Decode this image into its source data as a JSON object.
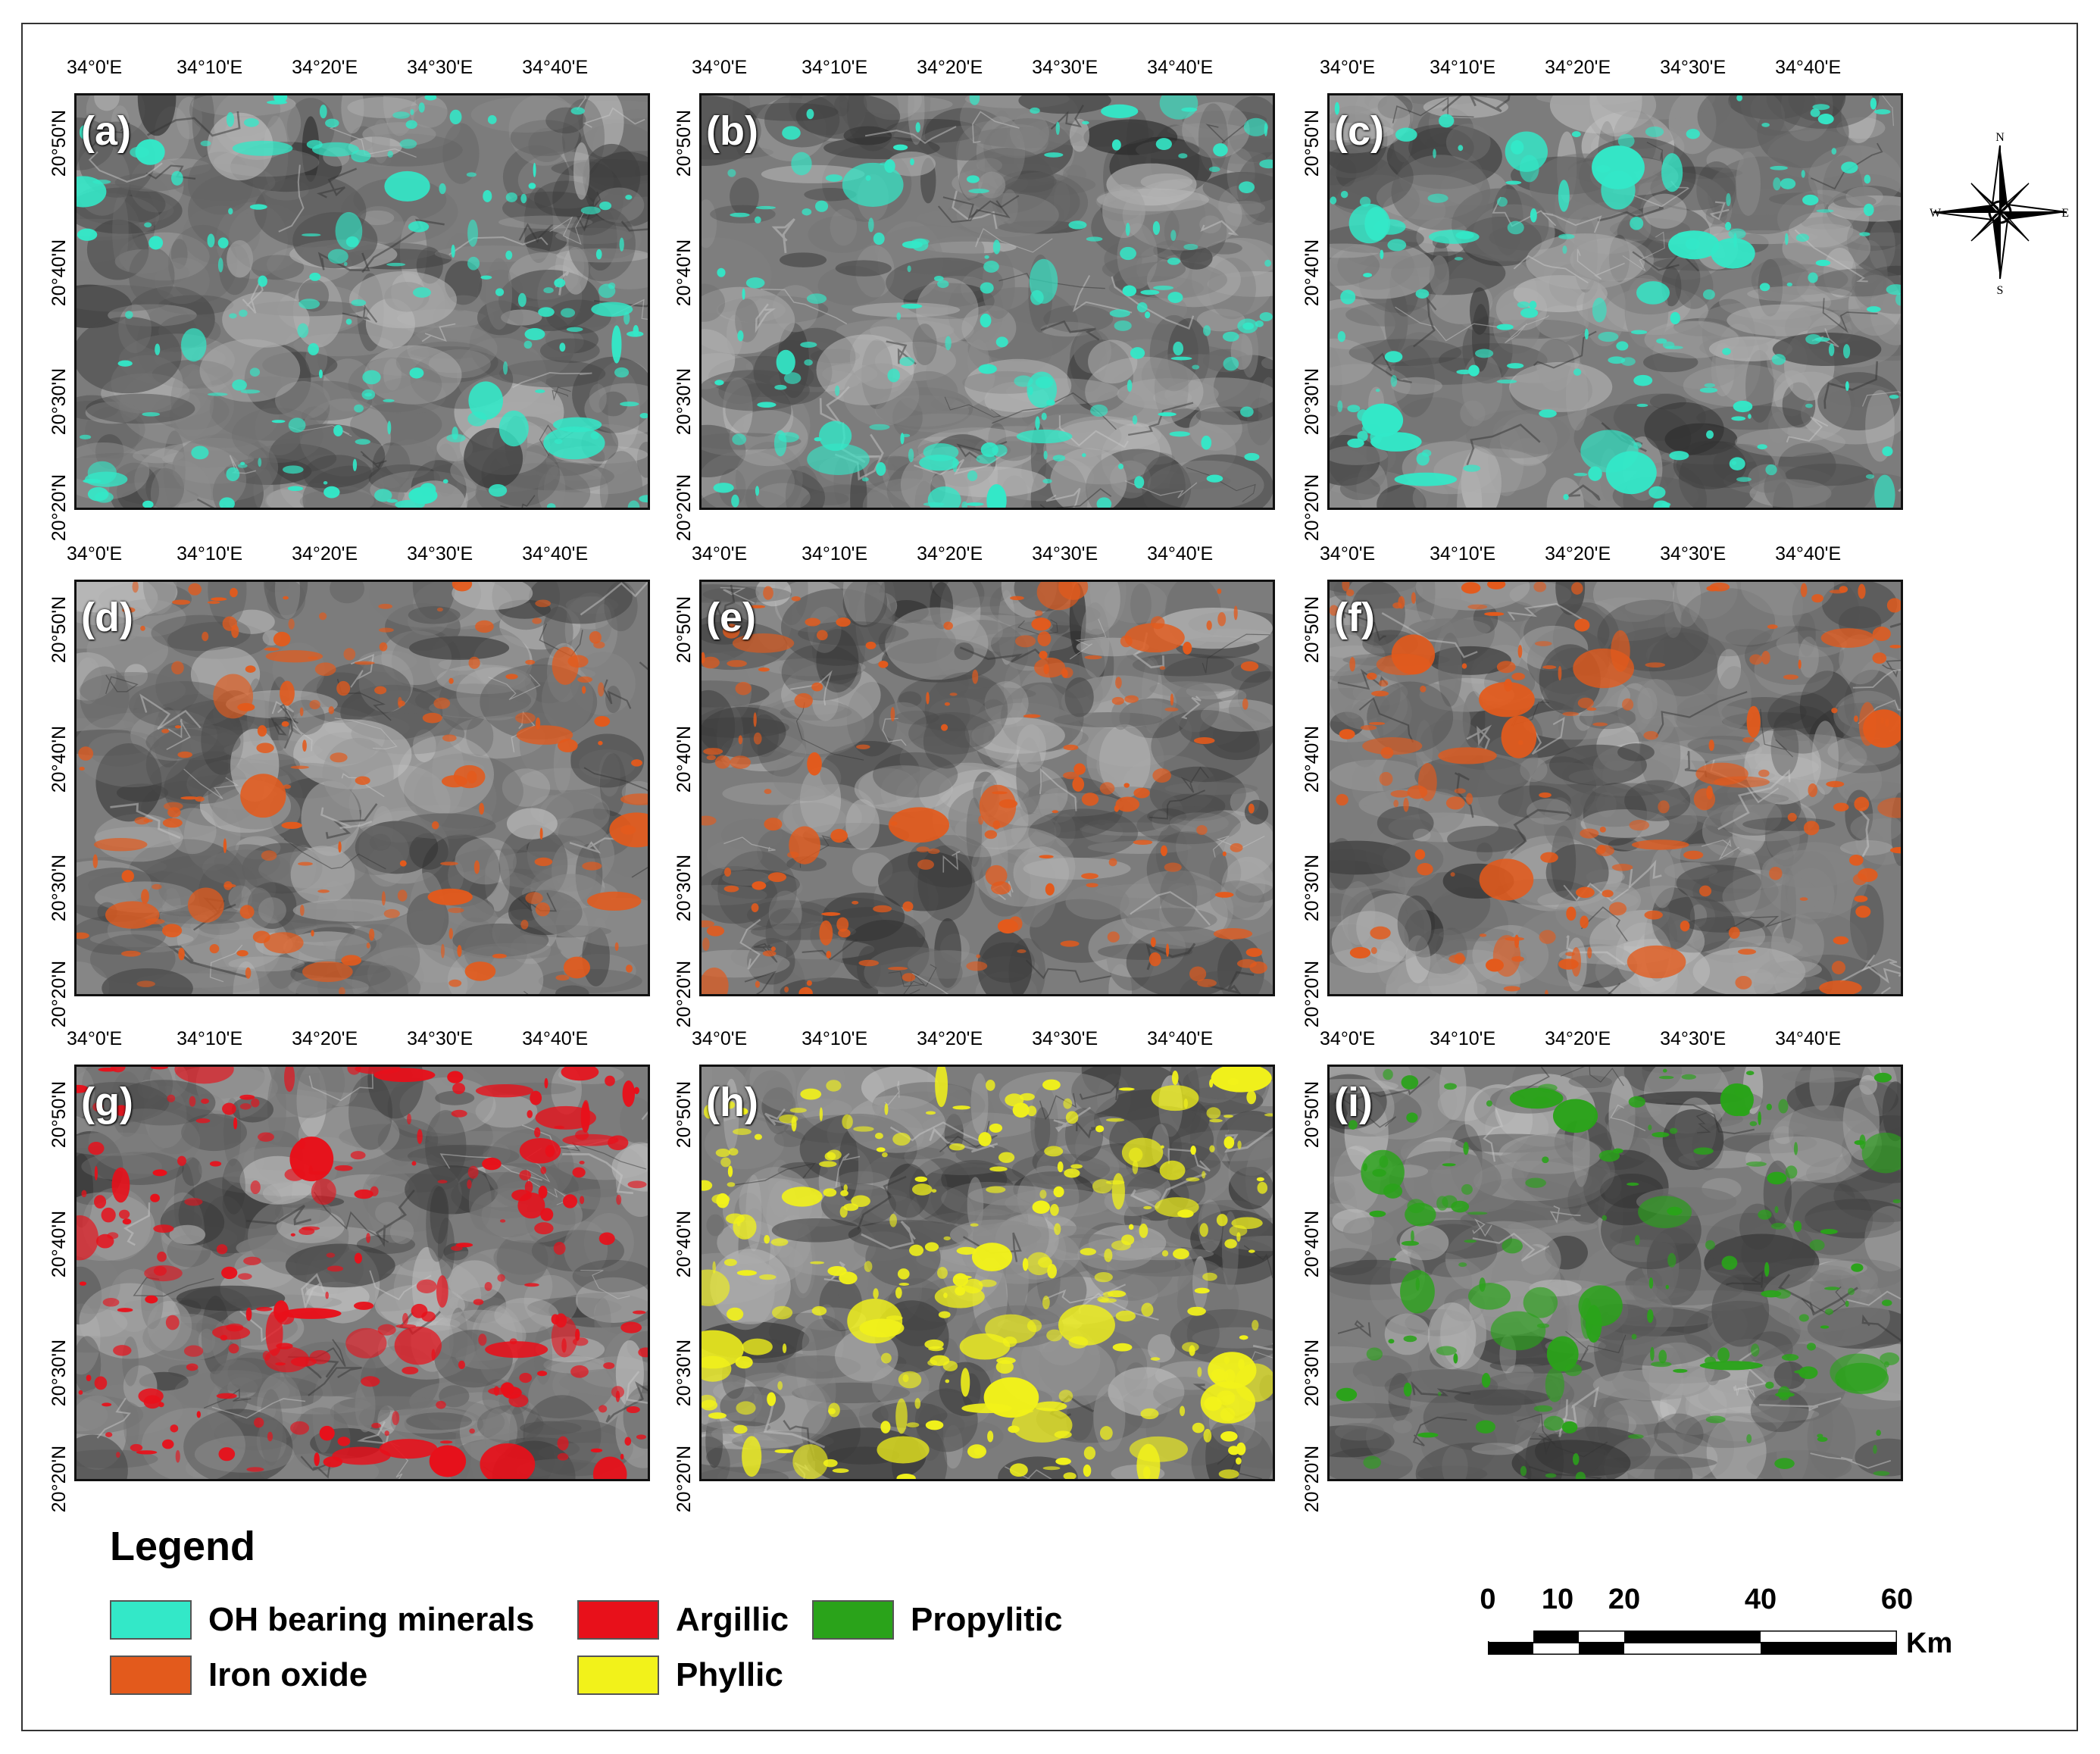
{
  "panels": [
    {
      "label": "(a)",
      "overlay": "oh"
    },
    {
      "label": "(b)",
      "overlay": "oh"
    },
    {
      "label": "(c)",
      "overlay": "oh"
    },
    {
      "label": "(d)",
      "overlay": "iron"
    },
    {
      "label": "(e)",
      "overlay": "iron"
    },
    {
      "label": "(f)",
      "overlay": "iron"
    },
    {
      "label": "(g)",
      "overlay": "argillic"
    },
    {
      "label": "(h)",
      "overlay": "phyllic"
    },
    {
      "label": "(i)",
      "overlay": "propylitic"
    }
  ],
  "x_ticks": [
    "34°0'E",
    "34°10'E",
    "34°20'E",
    "34°30'E",
    "34°40'E"
  ],
  "y_ticks": [
    "20°50'N",
    "20°40'N",
    "20°30'N",
    "20°20'N"
  ],
  "legend": {
    "title": "Legend",
    "items": [
      {
        "key": "oh",
        "label": "OH bearing minerals",
        "color": "#33e8c8"
      },
      {
        "key": "argillic",
        "label": "Argillic",
        "color": "#e8101a"
      },
      {
        "key": "propylitic",
        "label": "Propylitic",
        "color": "#2aa31a"
      },
      {
        "key": "iron",
        "label": "Iron oxide",
        "color": "#e35a1c"
      },
      {
        "key": "phyllic",
        "label": "Phyllic",
        "color": "#f2f21a"
      }
    ]
  },
  "scale_bar": {
    "labels": [
      "0",
      "10",
      "20",
      "40",
      "60"
    ],
    "unit": "Km"
  },
  "north_arrow": {
    "n": "N",
    "s": "S",
    "e": "E",
    "w": "W"
  }
}
